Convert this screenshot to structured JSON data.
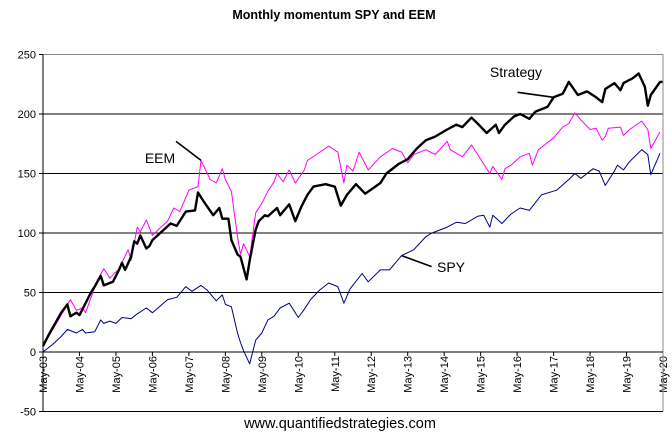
{
  "chart_data": {
    "type": "line",
    "title": "Monthly momentum SPY and EEM",
    "footer": "www.quantifiedstrategies.com",
    "xlabel": "",
    "ylabel": "",
    "xlim": [
      "2003-05",
      "2020-05"
    ],
    "ylim": [
      -50,
      250
    ],
    "yticks": [
      250,
      200,
      150,
      100,
      50,
      0,
      -50
    ],
    "xticks": [
      "May-03",
      "May-04",
      "May-05",
      "May-06",
      "May-07",
      "May-08",
      "May-09",
      "May-10",
      "May-11",
      "May-12",
      "May-13",
      "May-14",
      "May-15",
      "May-16",
      "May-17",
      "May-18",
      "May-19",
      "May-20"
    ],
    "grid": "horizontal",
    "legend": "none",
    "series": [
      {
        "name": "Strategy",
        "color": "#000000",
        "points": [
          [
            "2003-05",
            5
          ],
          [
            "2003-07",
            15
          ],
          [
            "2003-11",
            33
          ],
          [
            "2004-01",
            40
          ],
          [
            "2004-02",
            30
          ],
          [
            "2004-04",
            33
          ],
          [
            "2004-05",
            31
          ],
          [
            "2004-09",
            51
          ],
          [
            "2004-10",
            55
          ],
          [
            "2004-12",
            64
          ],
          [
            "2005-01",
            56
          ],
          [
            "2005-04",
            59
          ],
          [
            "2005-06",
            69
          ],
          [
            "2005-07",
            75
          ],
          [
            "2005-08",
            69
          ],
          [
            "2005-10",
            80
          ],
          [
            "2005-11",
            93
          ],
          [
            "2005-12",
            91
          ],
          [
            "2006-01",
            98
          ],
          [
            "2006-03",
            87
          ],
          [
            "2006-04",
            89
          ],
          [
            "2006-05",
            94
          ],
          [
            "2006-11",
            108
          ],
          [
            "2007-01",
            106
          ],
          [
            "2007-04",
            118
          ],
          [
            "2007-07",
            119
          ],
          [
            "2007-08",
            134
          ],
          [
            "2007-10",
            126
          ],
          [
            "2008-01",
            115
          ],
          [
            "2008-03",
            121
          ],
          [
            "2008-04",
            112
          ],
          [
            "2008-06",
            112
          ],
          [
            "2008-07",
            94
          ],
          [
            "2008-09",
            82
          ],
          [
            "2008-10",
            80
          ],
          [
            "2008-12",
            61
          ],
          [
            "2009-01",
            77
          ],
          [
            "2009-03",
            103
          ],
          [
            "2009-04",
            110
          ],
          [
            "2009-06",
            115
          ],
          [
            "2009-07",
            114
          ],
          [
            "2009-10",
            121
          ],
          [
            "2009-11",
            115
          ],
          [
            "2010-02",
            124
          ],
          [
            "2010-04",
            110
          ],
          [
            "2010-06",
            122
          ],
          [
            "2010-08",
            132
          ],
          [
            "2010-10",
            139
          ],
          [
            "2011-02",
            141
          ],
          [
            "2011-05",
            139
          ],
          [
            "2011-07",
            123
          ],
          [
            "2011-09",
            132
          ],
          [
            "2011-12",
            141
          ],
          [
            "2012-03",
            133
          ],
          [
            "2012-08",
            142
          ],
          [
            "2012-10",
            150
          ],
          [
            "2013-02",
            158
          ],
          [
            "2013-05",
            162
          ],
          [
            "2013-08",
            171
          ],
          [
            "2013-11",
            178
          ],
          [
            "2014-02",
            181
          ],
          [
            "2014-06",
            187
          ],
          [
            "2014-09",
            191
          ],
          [
            "2014-11",
            189
          ],
          [
            "2015-02",
            197
          ],
          [
            "2015-04",
            192
          ],
          [
            "2015-07",
            184
          ],
          [
            "2015-10",
            191
          ],
          [
            "2015-11",
            184
          ],
          [
            "2016-01",
            191
          ],
          [
            "2016-04",
            198
          ],
          [
            "2016-06",
            200
          ],
          [
            "2016-09",
            196
          ],
          [
            "2016-11",
            202
          ],
          [
            "2017-03",
            206
          ],
          [
            "2017-05",
            214
          ],
          [
            "2017-08",
            217
          ],
          [
            "2017-10",
            227
          ],
          [
            "2018-01",
            216
          ],
          [
            "2018-04",
            219
          ],
          [
            "2018-07",
            214
          ],
          [
            "2018-09",
            210
          ],
          [
            "2018-10",
            221
          ],
          [
            "2019-01",
            226
          ],
          [
            "2019-03",
            220
          ],
          [
            "2019-04",
            226
          ],
          [
            "2019-07",
            230
          ],
          [
            "2019-09",
            234
          ],
          [
            "2019-11",
            223
          ],
          [
            "2019-12",
            207
          ],
          [
            "2020-01",
            216
          ],
          [
            "2020-04",
            227
          ],
          [
            "2020-05",
            227
          ]
        ]
      },
      {
        "name": "EEM",
        "color": "#ff00ff",
        "points": [
          [
            "2003-05",
            5
          ],
          [
            "2003-11",
            31
          ],
          [
            "2004-02",
            44
          ],
          [
            "2004-04",
            35
          ],
          [
            "2004-06",
            37
          ],
          [
            "2004-07",
            33
          ],
          [
            "2004-11",
            61
          ],
          [
            "2005-01",
            70
          ],
          [
            "2005-03",
            62
          ],
          [
            "2005-06",
            70
          ],
          [
            "2005-09",
            86
          ],
          [
            "2005-10",
            77
          ],
          [
            "2005-12",
            105
          ],
          [
            "2006-01",
            101
          ],
          [
            "2006-03",
            111
          ],
          [
            "2006-05",
            98
          ],
          [
            "2006-07",
            103
          ],
          [
            "2006-10",
            110
          ],
          [
            "2006-12",
            121
          ],
          [
            "2007-02",
            118
          ],
          [
            "2007-05",
            136
          ],
          [
            "2007-08",
            139
          ],
          [
            "2007-09",
            161
          ],
          [
            "2007-12",
            145
          ],
          [
            "2008-02",
            142
          ],
          [
            "2008-04",
            154
          ],
          [
            "2008-05",
            145
          ],
          [
            "2008-07",
            135
          ],
          [
            "2008-09",
            97
          ],
          [
            "2008-10",
            82
          ],
          [
            "2008-11",
            91
          ],
          [
            "2009-01",
            80
          ],
          [
            "2009-03",
            117
          ],
          [
            "2009-05",
            125
          ],
          [
            "2009-07",
            135
          ],
          [
            "2009-09",
            143
          ],
          [
            "2009-10",
            150
          ],
          [
            "2009-12",
            143
          ],
          [
            "2010-02",
            153
          ],
          [
            "2010-04",
            142
          ],
          [
            "2010-07",
            153
          ],
          [
            "2010-08",
            161
          ],
          [
            "2010-11",
            166
          ],
          [
            "2011-03",
            173
          ],
          [
            "2011-06",
            168
          ],
          [
            "2011-08",
            142
          ],
          [
            "2011-09",
            157
          ],
          [
            "2011-11",
            152
          ],
          [
            "2012-01",
            168
          ],
          [
            "2012-04",
            153
          ],
          [
            "2012-08",
            164
          ],
          [
            "2012-12",
            171
          ],
          [
            "2013-03",
            168
          ],
          [
            "2013-05",
            159
          ],
          [
            "2013-07",
            166
          ],
          [
            "2013-11",
            170
          ],
          [
            "2014-02",
            166
          ],
          [
            "2014-06",
            177
          ],
          [
            "2014-07",
            170
          ],
          [
            "2014-11",
            164
          ],
          [
            "2015-02",
            174
          ],
          [
            "2015-08",
            150
          ],
          [
            "2015-09",
            156
          ],
          [
            "2015-12",
            145
          ],
          [
            "2016-01",
            154
          ],
          [
            "2016-03",
            157
          ],
          [
            "2016-06",
            164
          ],
          [
            "2016-09",
            167
          ],
          [
            "2016-10",
            157
          ],
          [
            "2016-12",
            170
          ],
          [
            "2017-05",
            180
          ],
          [
            "2017-08",
            189
          ],
          [
            "2017-10",
            192
          ],
          [
            "2017-12",
            201
          ],
          [
            "2018-02",
            195
          ],
          [
            "2018-05",
            187
          ],
          [
            "2018-07",
            188
          ],
          [
            "2018-09",
            178
          ],
          [
            "2018-10",
            181
          ],
          [
            "2018-11",
            188
          ],
          [
            "2019-03",
            189
          ],
          [
            "2019-04",
            182
          ],
          [
            "2019-06",
            187
          ],
          [
            "2019-10",
            194
          ],
          [
            "2019-12",
            187
          ],
          [
            "2020-01",
            171
          ],
          [
            "2020-04",
            185
          ]
        ]
      },
      {
        "name": "SPY",
        "color": "#000080",
        "points": [
          [
            "2003-05",
            0
          ],
          [
            "2003-08",
            6
          ],
          [
            "2003-11",
            13
          ],
          [
            "2004-01",
            19
          ],
          [
            "2004-04",
            16
          ],
          [
            "2004-06",
            19
          ],
          [
            "2004-07",
            16
          ],
          [
            "2004-10",
            17
          ],
          [
            "2004-12",
            27
          ],
          [
            "2005-01",
            24
          ],
          [
            "2005-03",
            26
          ],
          [
            "2005-05",
            24
          ],
          [
            "2005-07",
            29
          ],
          [
            "2005-10",
            28
          ],
          [
            "2005-12",
            32
          ],
          [
            "2006-03",
            37
          ],
          [
            "2006-05",
            33
          ],
          [
            "2006-10",
            44
          ],
          [
            "2007-01",
            46
          ],
          [
            "2007-04",
            55
          ],
          [
            "2007-06",
            51
          ],
          [
            "2007-09",
            56
          ],
          [
            "2007-11",
            52
          ],
          [
            "2008-02",
            43
          ],
          [
            "2008-04",
            48
          ],
          [
            "2008-05",
            40
          ],
          [
            "2008-07",
            38
          ],
          [
            "2008-09",
            16
          ],
          [
            "2008-10",
            8
          ],
          [
            "2008-11",
            1
          ],
          [
            "2009-01",
            -10
          ],
          [
            "2009-03",
            10
          ],
          [
            "2009-05",
            16
          ],
          [
            "2009-07",
            27
          ],
          [
            "2009-09",
            30
          ],
          [
            "2009-11",
            37
          ],
          [
            "2010-02",
            41
          ],
          [
            "2010-05",
            29
          ],
          [
            "2010-07",
            36
          ],
          [
            "2010-09",
            44
          ],
          [
            "2010-12",
            52
          ],
          [
            "2011-03",
            58
          ],
          [
            "2011-06",
            55
          ],
          [
            "2011-08",
            41
          ],
          [
            "2011-10",
            53
          ],
          [
            "2012-02",
            66
          ],
          [
            "2012-04",
            59
          ],
          [
            "2012-08",
            69
          ],
          [
            "2012-11",
            69
          ],
          [
            "2013-03",
            81
          ],
          [
            "2013-07",
            86
          ],
          [
            "2013-11",
            97
          ],
          [
            "2014-01",
            100
          ],
          [
            "2014-06",
            105
          ],
          [
            "2014-09",
            109
          ],
          [
            "2014-12",
            108
          ],
          [
            "2015-04",
            114
          ],
          [
            "2015-06",
            115
          ],
          [
            "2015-08",
            105
          ],
          [
            "2015-09",
            115
          ],
          [
            "2015-12",
            108
          ],
          [
            "2016-03",
            116
          ],
          [
            "2016-06",
            121
          ],
          [
            "2016-09",
            119
          ],
          [
            "2017-01",
            132
          ],
          [
            "2017-06",
            136
          ],
          [
            "2017-10",
            145
          ],
          [
            "2017-12",
            150
          ],
          [
            "2018-02",
            146
          ],
          [
            "2018-06",
            154
          ],
          [
            "2018-08",
            152
          ],
          [
            "2018-10",
            140
          ],
          [
            "2019-01",
            152
          ],
          [
            "2019-02",
            157
          ],
          [
            "2019-04",
            153
          ],
          [
            "2019-06",
            160
          ],
          [
            "2019-10",
            170
          ],
          [
            "2019-12",
            166
          ],
          [
            "2020-01",
            149
          ],
          [
            "2020-04",
            167
          ]
        ]
      }
    ],
    "annotations": [
      {
        "text": "Strategy",
        "series": "Strategy",
        "at": [
          "2017-05",
          214
        ]
      },
      {
        "text": "EEM",
        "series": "EEM",
        "at": [
          "2007-09",
          161
        ]
      },
      {
        "text": "SPY",
        "series": "SPY",
        "at": [
          "2013-03",
          81
        ]
      }
    ]
  }
}
